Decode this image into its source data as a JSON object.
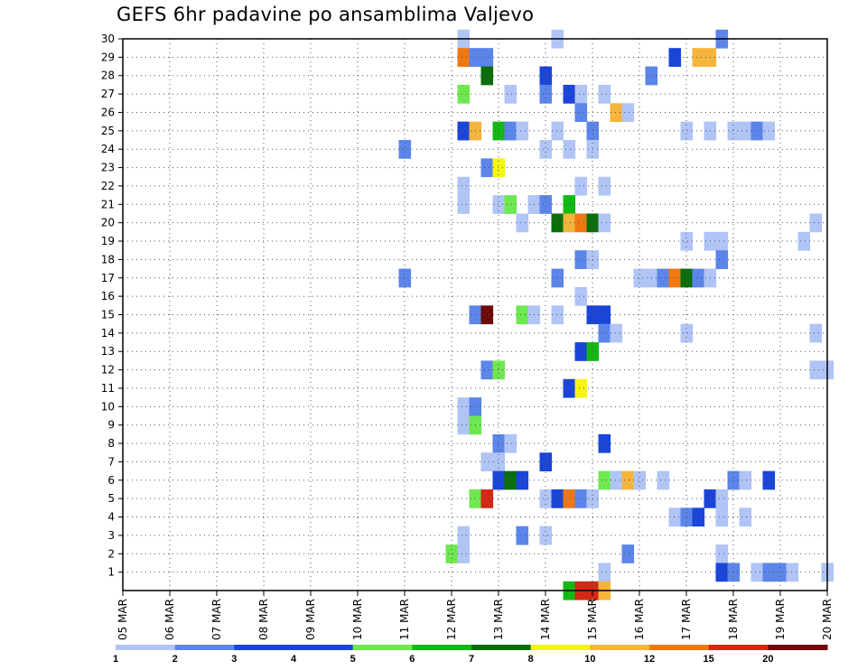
{
  "chart_data": {
    "type": "heatmap",
    "title": "GEFS 6hr padavine po ansamblima Valjevo",
    "xlabel": "",
    "ylabel": "",
    "x_tick_labels": [
      "05 MAR",
      "06 MAR",
      "07 MAR",
      "08 MAR",
      "09 MAR",
      "10 MAR",
      "11 MAR",
      "12 MAR",
      "13 MAR",
      "14 MAR",
      "15 MAR",
      "16 MAR",
      "17 MAR",
      "18 MAR",
      "19 MAR",
      "20 MAR"
    ],
    "x_range_days": [
      5,
      20
    ],
    "y_tick_labels": [
      "1",
      "2",
      "3",
      "4",
      "5",
      "6",
      "7",
      "8",
      "9",
      "10",
      "11",
      "12",
      "13",
      "14",
      "15",
      "16",
      "17",
      "18",
      "19",
      "20",
      "21",
      "22",
      "23",
      "24",
      "25",
      "26",
      "27",
      "28",
      "29",
      "30"
    ],
    "y_range": [
      0,
      30
    ],
    "grid": true,
    "colorbar": {
      "labels": [
        "1",
        "2",
        "3",
        "4",
        "5",
        "6",
        "7",
        "8",
        "10",
        "12",
        "15",
        "20"
      ],
      "colors": [
        "#b0c4f5",
        "#5b85e8",
        "#1a45d8",
        "#1a45d8",
        "#6ee84f",
        "#14b814",
        "#0a6e0a",
        "#f5f514",
        "#f5b43c",
        "#f07814",
        "#d22814",
        "#6e0a0a"
      ]
    },
    "cells": [
      {
        "m": 30,
        "d": 12.25,
        "c": 1
      },
      {
        "m": 30,
        "d": 14.25,
        "c": 1
      },
      {
        "m": 30,
        "d": 17.75,
        "c": 2
      },
      {
        "m": 29,
        "d": 12.25,
        "c": 10
      },
      {
        "m": 29,
        "d": 12.5,
        "c": 2
      },
      {
        "m": 29,
        "d": 12.75,
        "c": 2
      },
      {
        "m": 29,
        "d": 16.75,
        "c": 3
      },
      {
        "m": 29,
        "d": 17.25,
        "c": 9
      },
      {
        "m": 29,
        "d": 17.5,
        "c": 9
      },
      {
        "m": 28,
        "d": 12.75,
        "c": 7
      },
      {
        "m": 28,
        "d": 14,
        "c": 3
      },
      {
        "m": 28,
        "d": 16.25,
        "c": 2
      },
      {
        "m": 27,
        "d": 12.25,
        "c": 5
      },
      {
        "m": 27,
        "d": 13.25,
        "c": 1
      },
      {
        "m": 27,
        "d": 14,
        "c": 2
      },
      {
        "m": 27,
        "d": 14.5,
        "c": 3
      },
      {
        "m": 27,
        "d": 14.75,
        "c": 1
      },
      {
        "m": 27,
        "d": 15.25,
        "c": 1
      },
      {
        "m": 26,
        "d": 14.75,
        "c": 2
      },
      {
        "m": 26,
        "d": 15.5,
        "c": 9
      },
      {
        "m": 26,
        "d": 15.75,
        "c": 1
      },
      {
        "m": 25,
        "d": 12.25,
        "c": 3
      },
      {
        "m": 25,
        "d": 12.5,
        "c": 9
      },
      {
        "m": 25,
        "d": 13,
        "c": 6
      },
      {
        "m": 25,
        "d": 13.25,
        "c": 2
      },
      {
        "m": 25,
        "d": 13.5,
        "c": 1
      },
      {
        "m": 25,
        "d": 14.25,
        "c": 1
      },
      {
        "m": 25,
        "d": 15,
        "c": 2
      },
      {
        "m": 25,
        "d": 17,
        "c": 1
      },
      {
        "m": 25,
        "d": 17.5,
        "c": 1
      },
      {
        "m": 25,
        "d": 18,
        "c": 1
      },
      {
        "m": 25,
        "d": 18.25,
        "c": 1
      },
      {
        "m": 25,
        "d": 18.5,
        "c": 2
      },
      {
        "m": 25,
        "d": 18.75,
        "c": 1
      },
      {
        "m": 24,
        "d": 11,
        "c": 2
      },
      {
        "m": 24,
        "d": 14,
        "c": 1
      },
      {
        "m": 24,
        "d": 14.5,
        "c": 1
      },
      {
        "m": 24,
        "d": 15,
        "c": 1
      },
      {
        "m": 23,
        "d": 12.75,
        "c": 2
      },
      {
        "m": 23,
        "d": 13,
        "c": 8
      },
      {
        "m": 22,
        "d": 12.25,
        "c": 1
      },
      {
        "m": 22,
        "d": 14.75,
        "c": 1
      },
      {
        "m": 22,
        "d": 15.25,
        "c": 1
      },
      {
        "m": 21,
        "d": 12.25,
        "c": 1
      },
      {
        "m": 21,
        "d": 13,
        "c": 1
      },
      {
        "m": 21,
        "d": 13.25,
        "c": 5
      },
      {
        "m": 21,
        "d": 13.75,
        "c": 1
      },
      {
        "m": 21,
        "d": 14,
        "c": 2
      },
      {
        "m": 21,
        "d": 14.5,
        "c": 6
      },
      {
        "m": 20,
        "d": 13.5,
        "c": 1
      },
      {
        "m": 20,
        "d": 14.25,
        "c": 7
      },
      {
        "m": 20,
        "d": 14.5,
        "c": 9
      },
      {
        "m": 20,
        "d": 14.75,
        "c": 10
      },
      {
        "m": 20,
        "d": 15,
        "c": 7
      },
      {
        "m": 20,
        "d": 15.25,
        "c": 1
      },
      {
        "m": 20,
        "d": 19.75,
        "c": 1
      },
      {
        "m": 19,
        "d": 17,
        "c": 1
      },
      {
        "m": 19,
        "d": 17.5,
        "c": 1
      },
      {
        "m": 19,
        "d": 17.75,
        "c": 1
      },
      {
        "m": 19,
        "d": 19.5,
        "c": 1
      },
      {
        "m": 18,
        "d": 14.75,
        "c": 2
      },
      {
        "m": 18,
        "d": 15,
        "c": 1
      },
      {
        "m": 18,
        "d": 17.75,
        "c": 2
      },
      {
        "m": 17,
        "d": 11,
        "c": 2
      },
      {
        "m": 17,
        "d": 14.25,
        "c": 2
      },
      {
        "m": 17,
        "d": 16,
        "c": 1
      },
      {
        "m": 17,
        "d": 16.25,
        "c": 1
      },
      {
        "m": 17,
        "d": 16.5,
        "c": 2
      },
      {
        "m": 17,
        "d": 16.75,
        "c": 10
      },
      {
        "m": 17,
        "d": 17,
        "c": 7
      },
      {
        "m": 17,
        "d": 17.25,
        "c": 2
      },
      {
        "m": 17,
        "d": 17.5,
        "c": 1
      },
      {
        "m": 16,
        "d": 14.75,
        "c": 1
      },
      {
        "m": 15,
        "d": 12.5,
        "c": 2
      },
      {
        "m": 15,
        "d": 12.75,
        "c": 12
      },
      {
        "m": 15,
        "d": 13.5,
        "c": 5
      },
      {
        "m": 15,
        "d": 13.75,
        "c": 1
      },
      {
        "m": 15,
        "d": 14.25,
        "c": 1
      },
      {
        "m": 15,
        "d": 15,
        "c": 3
      },
      {
        "m": 15,
        "d": 15.25,
        "c": 3
      },
      {
        "m": 14,
        "d": 15.25,
        "c": 2
      },
      {
        "m": 14,
        "d": 15.5,
        "c": 1
      },
      {
        "m": 14,
        "d": 17,
        "c": 1
      },
      {
        "m": 14,
        "d": 19.75,
        "c": 1
      },
      {
        "m": 13,
        "d": 14.75,
        "c": 3
      },
      {
        "m": 13,
        "d": 15,
        "c": 6
      },
      {
        "m": 12,
        "d": 12.75,
        "c": 2
      },
      {
        "m": 12,
        "d": 13,
        "c": 5
      },
      {
        "m": 12,
        "d": 19.75,
        "c": 1
      },
      {
        "m": 12,
        "d": 20,
        "c": 1
      },
      {
        "m": 11,
        "d": 14.5,
        "c": 3
      },
      {
        "m": 11,
        "d": 14.75,
        "c": 8
      },
      {
        "m": 10,
        "d": 12.25,
        "c": 1
      },
      {
        "m": 10,
        "d": 12.5,
        "c": 2
      },
      {
        "m": 9,
        "d": 12.25,
        "c": 1
      },
      {
        "m": 9,
        "d": 12.5,
        "c": 5
      },
      {
        "m": 8,
        "d": 13,
        "c": 2
      },
      {
        "m": 8,
        "d": 13.25,
        "c": 1
      },
      {
        "m": 8,
        "d": 15.25,
        "c": 3
      },
      {
        "m": 7,
        "d": 12.75,
        "c": 1
      },
      {
        "m": 7,
        "d": 13,
        "c": 1
      },
      {
        "m": 7,
        "d": 14,
        "c": 3
      },
      {
        "m": 6,
        "d": 13,
        "c": 3
      },
      {
        "m": 6,
        "d": 13.25,
        "c": 7
      },
      {
        "m": 6,
        "d": 13.5,
        "c": 3
      },
      {
        "m": 6,
        "d": 15.25,
        "c": 5
      },
      {
        "m": 6,
        "d": 15.5,
        "c": 1
      },
      {
        "m": 6,
        "d": 15.75,
        "c": 9
      },
      {
        "m": 6,
        "d": 16,
        "c": 1
      },
      {
        "m": 6,
        "d": 16.5,
        "c": 1
      },
      {
        "m": 6,
        "d": 18,
        "c": 2
      },
      {
        "m": 6,
        "d": 18.25,
        "c": 1
      },
      {
        "m": 6,
        "d": 18.75,
        "c": 3
      },
      {
        "m": 5,
        "d": 12.5,
        "c": 5
      },
      {
        "m": 5,
        "d": 12.75,
        "c": 11
      },
      {
        "m": 5,
        "d": 14,
        "c": 1
      },
      {
        "m": 5,
        "d": 14.25,
        "c": 3
      },
      {
        "m": 5,
        "d": 14.5,
        "c": 10
      },
      {
        "m": 5,
        "d": 14.75,
        "c": 2
      },
      {
        "m": 5,
        "d": 15,
        "c": 1
      },
      {
        "m": 5,
        "d": 17.5,
        "c": 3
      },
      {
        "m": 5,
        "d": 17.75,
        "c": 1
      },
      {
        "m": 4,
        "d": 16.75,
        "c": 1
      },
      {
        "m": 4,
        "d": 17,
        "c": 2
      },
      {
        "m": 4,
        "d": 17.25,
        "c": 3
      },
      {
        "m": 4,
        "d": 17.75,
        "c": 1
      },
      {
        "m": 4,
        "d": 18.25,
        "c": 1
      },
      {
        "m": 3,
        "d": 12.25,
        "c": 1
      },
      {
        "m": 3,
        "d": 13.5,
        "c": 2
      },
      {
        "m": 3,
        "d": 14,
        "c": 1
      },
      {
        "m": 2,
        "d": 12,
        "c": 5
      },
      {
        "m": 2,
        "d": 12.25,
        "c": 1
      },
      {
        "m": 2,
        "d": 15.75,
        "c": 2
      },
      {
        "m": 2,
        "d": 17.75,
        "c": 1
      },
      {
        "m": 1,
        "d": 15.25,
        "c": 1
      },
      {
        "m": 1,
        "d": 17.75,
        "c": 3
      },
      {
        "m": 1,
        "d": 18,
        "c": 2
      },
      {
        "m": 1,
        "d": 18.5,
        "c": 1
      },
      {
        "m": 1,
        "d": 18.75,
        "c": 2
      },
      {
        "m": 1,
        "d": 19,
        "c": 2
      },
      {
        "m": 1,
        "d": 19.25,
        "c": 1
      },
      {
        "m": 1,
        "d": 20,
        "c": 1
      },
      {
        "m": 0,
        "d": 14.5,
        "c": 6
      },
      {
        "m": 0,
        "d": 14.75,
        "c": 11
      },
      {
        "m": 0,
        "d": 15,
        "c": 11
      },
      {
        "m": 0,
        "d": 15.25,
        "c": 9
      }
    ]
  }
}
